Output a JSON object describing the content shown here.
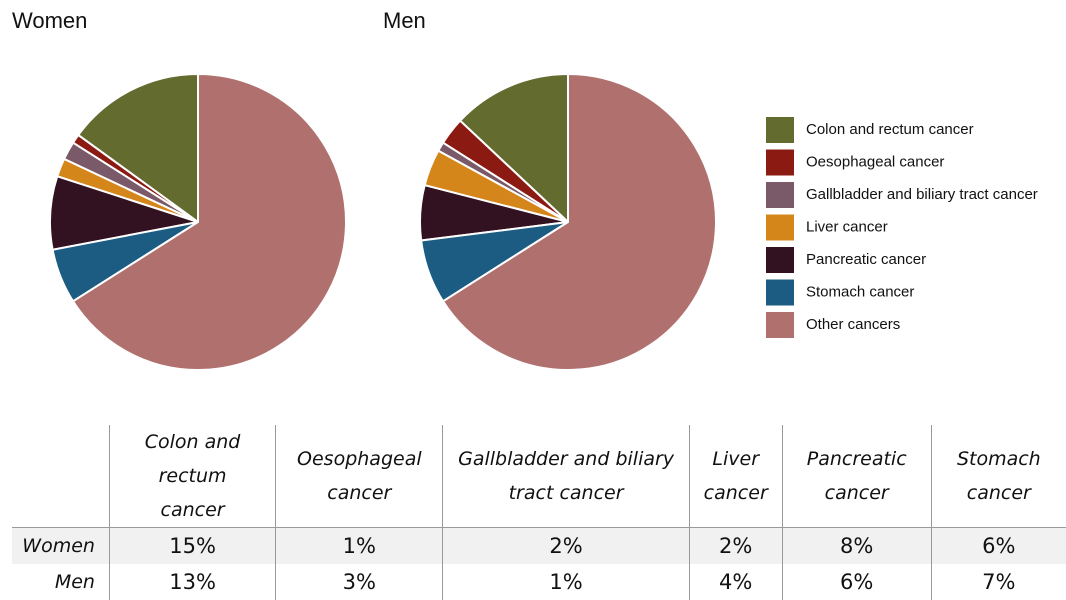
{
  "chart_data": [
    {
      "type": "pie",
      "title": "Women",
      "categories": [
        "Colon and rectum cancer",
        "Oesophageal cancer",
        "Gallbladder and biliary tract cancer",
        "Liver cancer",
        "Pancreatic cancer",
        "Stomach cancer",
        "Other cancers"
      ],
      "values": [
        15,
        1,
        2,
        2,
        8,
        6,
        66
      ],
      "value_labels": [
        "15%",
        "1%",
        "2%",
        "2%",
        "8%",
        "6%",
        null
      ],
      "colors": [
        "#636b2f",
        "#8b1a12",
        "#7a5a68",
        "#d4861a",
        "#321221",
        "#1d5c82",
        "#b0706e"
      ],
      "legend": "right"
    },
    {
      "type": "pie",
      "title": "Men",
      "categories": [
        "Colon and rectum cancer",
        "Oesophageal cancer",
        "Gallbladder and biliary tract cancer",
        "Liver cancer",
        "Pancreatic cancer",
        "Stomach cancer",
        "Other cancers"
      ],
      "values": [
        13,
        3,
        1,
        4,
        6,
        7,
        66
      ],
      "value_labels": [
        "13%",
        "3%",
        "1%",
        "4%",
        "6%",
        "7%",
        null
      ],
      "colors": [
        "#636b2f",
        "#8b1a12",
        "#7a5a68",
        "#d4861a",
        "#321221",
        "#1d5c82",
        "#b0706e"
      ],
      "legend": "right"
    }
  ]
}
